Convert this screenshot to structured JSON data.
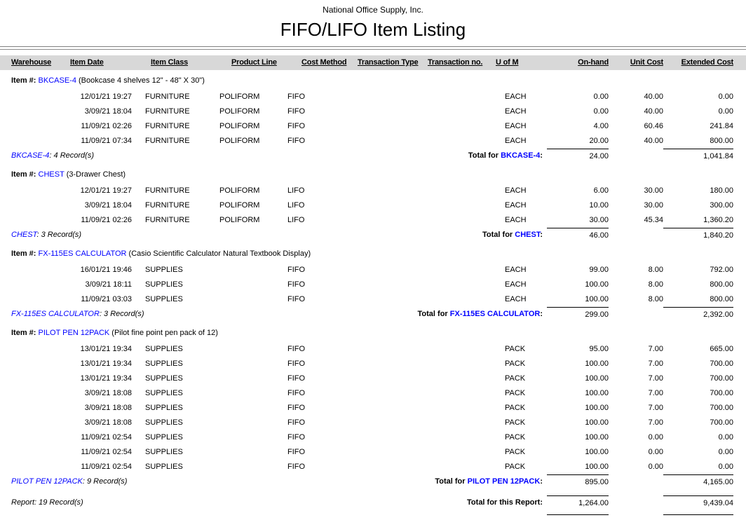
{
  "page": {
    "company": "National Office Supply, Inc.",
    "title": "FIFO/LIFO Item Listing"
  },
  "table": {
    "columns": [
      "Warehouse",
      "Item Date",
      "Item Class",
      "Product Line",
      "Cost Method",
      "Transaction Type",
      "Transaction no.",
      "U of M",
      "On-hand",
      "Unit Cost",
      "Extended Cost"
    ],
    "item_label": "Item #:",
    "total_for_label": "Total for",
    "colon": ":",
    "groups": [
      {
        "code": "BKCASE-4",
        "description": "(Bookcase 4 shelves 12\" - 48\" X 30\")",
        "records": ": 4 Record(s)",
        "rows": [
          [
            "",
            "12/01/21 19:27",
            "FURNITURE",
            "POLIFORM",
            "FIFO",
            "",
            "",
            "EACH",
            "0.00",
            "40.00",
            "0.00"
          ],
          [
            "",
            "3/09/21 18:04",
            "FURNITURE",
            "POLIFORM",
            "FIFO",
            "",
            "",
            "EACH",
            "0.00",
            "40.00",
            "0.00"
          ],
          [
            "",
            "11/09/21 02:26",
            "FURNITURE",
            "POLIFORM",
            "FIFO",
            "",
            "",
            "EACH",
            "4.00",
            "60.46",
            "241.84"
          ],
          [
            "",
            "11/09/21 07:34",
            "FURNITURE",
            "POLIFORM",
            "FIFO",
            "",
            "",
            "EACH",
            "20.00",
            "40.00",
            "800.00"
          ]
        ],
        "total_on_hand": "24.00",
        "total_extended_cost": "1,041.84"
      },
      {
        "code": "CHEST",
        "description": "(3-Drawer Chest)",
        "records": ": 3 Record(s)",
        "rows": [
          [
            "",
            "12/01/21 19:27",
            "FURNITURE",
            "POLIFORM",
            "LIFO",
            "",
            "",
            "EACH",
            "6.00",
            "30.00",
            "180.00"
          ],
          [
            "",
            "3/09/21 18:04",
            "FURNITURE",
            "POLIFORM",
            "LIFO",
            "",
            "",
            "EACH",
            "10.00",
            "30.00",
            "300.00"
          ],
          [
            "",
            "11/09/21 02:26",
            "FURNITURE",
            "POLIFORM",
            "LIFO",
            "",
            "",
            "EACH",
            "30.00",
            "45.34",
            "1,360.20"
          ]
        ],
        "total_on_hand": "46.00",
        "total_extended_cost": "1,840.20"
      },
      {
        "code": "FX-115ES CALCULATOR",
        "description": "(Casio Scientific Calculator Natural Textbook Display)",
        "records": ": 3 Record(s)",
        "rows": [
          [
            "",
            "16/01/21 19:46",
            "SUPPLIES",
            "",
            "FIFO",
            "",
            "",
            "EACH",
            "99.00",
            "8.00",
            "792.00"
          ],
          [
            "",
            "3/09/21 18:11",
            "SUPPLIES",
            "",
            "FIFO",
            "",
            "",
            "EACH",
            "100.00",
            "8.00",
            "800.00"
          ],
          [
            "",
            "11/09/21 03:03",
            "SUPPLIES",
            "",
            "FIFO",
            "",
            "",
            "EACH",
            "100.00",
            "8.00",
            "800.00"
          ]
        ],
        "total_on_hand": "299.00",
        "total_extended_cost": "2,392.00"
      },
      {
        "code": "PILOT PEN 12PACK",
        "description": "(Pilot fine point pen pack of 12)",
        "records": ": 9 Record(s)",
        "rows": [
          [
            "",
            "13/01/21 19:34",
            "SUPPLIES",
            "",
            "FIFO",
            "",
            "",
            "PACK",
            "95.00",
            "7.00",
            "665.00"
          ],
          [
            "",
            "13/01/21 19:34",
            "SUPPLIES",
            "",
            "FIFO",
            "",
            "",
            "PACK",
            "100.00",
            "7.00",
            "700.00"
          ],
          [
            "",
            "13/01/21 19:34",
            "SUPPLIES",
            "",
            "FIFO",
            "",
            "",
            "PACK",
            "100.00",
            "7.00",
            "700.00"
          ],
          [
            "",
            "3/09/21 18:08",
            "SUPPLIES",
            "",
            "FIFO",
            "",
            "",
            "PACK",
            "100.00",
            "7.00",
            "700.00"
          ],
          [
            "",
            "3/09/21 18:08",
            "SUPPLIES",
            "",
            "FIFO",
            "",
            "",
            "PACK",
            "100.00",
            "7.00",
            "700.00"
          ],
          [
            "",
            "3/09/21 18:08",
            "SUPPLIES",
            "",
            "FIFO",
            "",
            "",
            "PACK",
            "100.00",
            "7.00",
            "700.00"
          ],
          [
            "",
            "11/09/21 02:54",
            "SUPPLIES",
            "",
            "FIFO",
            "",
            "",
            "PACK",
            "100.00",
            "0.00",
            "0.00"
          ],
          [
            "",
            "11/09/21 02:54",
            "SUPPLIES",
            "",
            "FIFO",
            "",
            "",
            "PACK",
            "100.00",
            "0.00",
            "0.00"
          ],
          [
            "",
            "11/09/21 02:54",
            "SUPPLIES",
            "",
            "FIFO",
            "",
            "",
            "PACK",
            "100.00",
            "0.00",
            "0.00"
          ]
        ],
        "total_on_hand": "895.00",
        "total_extended_cost": "4,165.00"
      }
    ],
    "report_total": {
      "records_text": "Report: 19 Record(s)",
      "label": "Total for this Report:",
      "on_hand": "1,264.00",
      "extended_cost": "9,439.04"
    },
    "colors": {
      "link_blue": "#0000ff",
      "header_band": "#d8d8d8",
      "rule_gray": "#7f7f7f"
    }
  }
}
